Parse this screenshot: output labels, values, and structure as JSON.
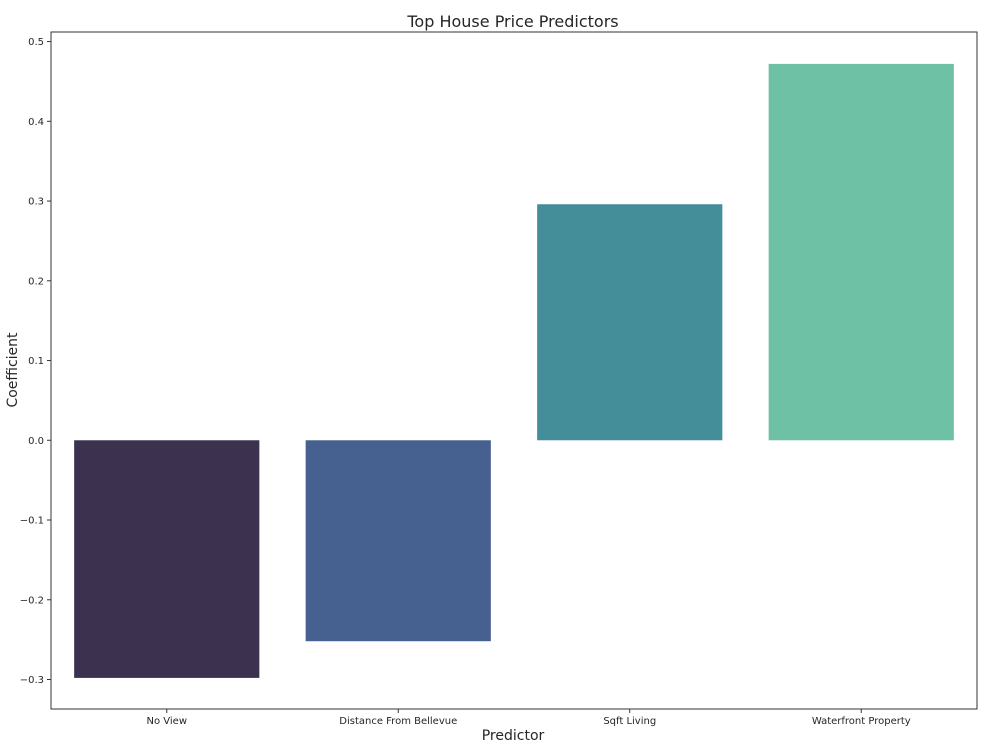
{
  "chart_data": {
    "type": "bar",
    "title": "Top House Price Predictors",
    "xlabel": "Predictor",
    "ylabel": "Coefficient",
    "categories": [
      "No View",
      "Distance From Bellevue",
      "Sqft Living",
      "Waterfront Property"
    ],
    "values": [
      -0.298,
      -0.252,
      0.296,
      0.472
    ],
    "colors": [
      "#3c314f",
      "#46608f",
      "#448e9a",
      "#6fc1a6"
    ],
    "ylim": [
      -0.337,
      0.512
    ],
    "yticks": [
      -0.3,
      -0.2,
      -0.1,
      0.0,
      0.1,
      0.2,
      0.3,
      0.4,
      0.5
    ],
    "ytick_labels": [
      "−0.3",
      "−0.2",
      "−0.1",
      "0.0",
      "0.1",
      "0.2",
      "0.3",
      "0.4",
      "0.5"
    ],
    "grid": false,
    "legend": "none"
  }
}
